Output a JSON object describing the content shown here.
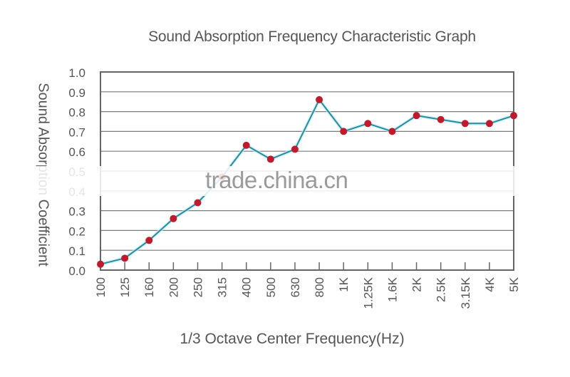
{
  "chart_data": {
    "type": "line",
    "title": "Sound Absorption Frequency Characteristic Graph",
    "xlabel": "1/3 Octave Center Frequency(Hz)",
    "ylabel": "Sound Absorption Coefficient",
    "categories": [
      "100",
      "125",
      "160",
      "200",
      "250",
      "315",
      "400",
      "500",
      "630",
      "800",
      "1K",
      "1.25K",
      "1.6K",
      "2K",
      "2.5K",
      "3.15K",
      "4K",
      "5K"
    ],
    "series": [
      {
        "name": "Sound Absorption Coefficient",
        "values": [
          0.03,
          0.06,
          0.15,
          0.26,
          0.34,
          0.47,
          0.63,
          0.56,
          0.61,
          0.86,
          0.7,
          0.74,
          0.7,
          0.78,
          0.76,
          0.74,
          0.74,
          0.78
        ]
      }
    ],
    "yticks": [
      "0.0",
      "0.1",
      "0.2",
      "0.3",
      "0.4",
      "0.5",
      "0.6",
      "0.7",
      "0.8",
      "0.9",
      "1.0"
    ],
    "ylim": [
      0,
      1.0
    ],
    "grid": true,
    "legend": "none",
    "colors": {
      "line": "#2b8a9c",
      "marker": "#c01a2c",
      "grid": "#7a7a7a",
      "axis": "#666666"
    }
  },
  "watermark": "trade.china.cn"
}
